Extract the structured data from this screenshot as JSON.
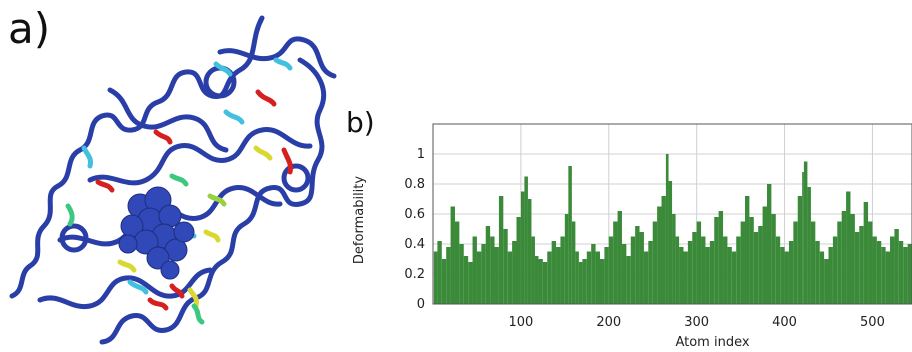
{
  "panel_labels": {
    "a": "a)",
    "b": "b)"
  },
  "chart_data": {
    "type": "bar",
    "title": "",
    "xlabel": "Atom index",
    "ylabel": "Deformability",
    "xlim": [
      0,
      545
    ],
    "ylim": [
      0,
      1.2
    ],
    "x_ticks": [
      100,
      200,
      300,
      400,
      500
    ],
    "y_ticks": [
      0,
      0.2,
      0.4,
      0.6,
      0.8,
      1
    ],
    "y_tick_labels": [
      "0",
      "0.2",
      "0.4",
      "0.6",
      "0.8",
      "1"
    ],
    "grid": true,
    "bar_color": "#3a8a3a",
    "series": [
      {
        "x": [
          1,
          5,
          10,
          15,
          20,
          25,
          30,
          35,
          40,
          45,
          50,
          55,
          60,
          65,
          70,
          75,
          80,
          85,
          90,
          95,
          100,
          104,
          108,
          112,
          116,
          120,
          125,
          130,
          135,
          140,
          145,
          150,
          154,
          158,
          162,
          166,
          170,
          175,
          180,
          185,
          190,
          195,
          200,
          205,
          210,
          215,
          220,
          225,
          230,
          235,
          240,
          245,
          250,
          255,
          260,
          265,
          268,
          272,
          276,
          280,
          285,
          290,
          295,
          300,
          305,
          310,
          315,
          320,
          325,
          330,
          335,
          340,
          345,
          350,
          355,
          360,
          365,
          370,
          375,
          380,
          385,
          390,
          395,
          400,
          405,
          410,
          415,
          420,
          422,
          426,
          430,
          435,
          440,
          445,
          450,
          455,
          460,
          465,
          470,
          475,
          480,
          485,
          490,
          495,
          500,
          505,
          510,
          515,
          520,
          525,
          530,
          535,
          540,
          545
        ],
        "values": [
          0.35,
          0.42,
          0.3,
          0.38,
          0.65,
          0.55,
          0.4,
          0.32,
          0.28,
          0.45,
          0.35,
          0.4,
          0.52,
          0.45,
          0.38,
          0.72,
          0.5,
          0.35,
          0.42,
          0.58,
          0.75,
          0.85,
          0.7,
          0.45,
          0.32,
          0.3,
          0.28,
          0.35,
          0.42,
          0.38,
          0.45,
          0.6,
          0.92,
          0.55,
          0.35,
          0.28,
          0.3,
          0.35,
          0.4,
          0.35,
          0.3,
          0.38,
          0.45,
          0.55,
          0.62,
          0.4,
          0.32,
          0.45,
          0.52,
          0.48,
          0.35,
          0.42,
          0.55,
          0.65,
          0.72,
          1.0,
          0.82,
          0.6,
          0.45,
          0.38,
          0.35,
          0.42,
          0.48,
          0.55,
          0.45,
          0.38,
          0.42,
          0.58,
          0.62,
          0.45,
          0.38,
          0.35,
          0.45,
          0.55,
          0.72,
          0.58,
          0.48,
          0.52,
          0.65,
          0.8,
          0.6,
          0.45,
          0.38,
          0.35,
          0.42,
          0.55,
          0.72,
          0.88,
          0.95,
          0.78,
          0.55,
          0.42,
          0.35,
          0.3,
          0.38,
          0.45,
          0.55,
          0.62,
          0.75,
          0.6,
          0.48,
          0.52,
          0.68,
          0.55,
          0.45,
          0.42,
          0.38,
          0.35,
          0.45,
          0.5,
          0.42,
          0.38,
          0.4,
          0.35
        ]
      }
    ]
  }
}
